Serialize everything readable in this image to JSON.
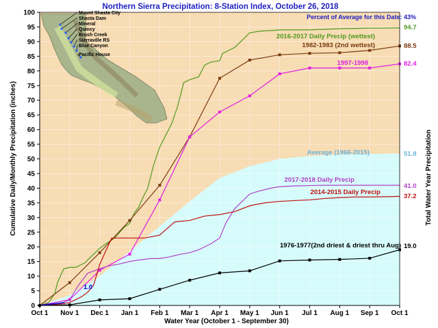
{
  "chart_data": {
    "type": "line",
    "title": "Northern Sierra Precipitation: 8-Station Index, October 26, 2018",
    "subtitle": "Percent of Average for this Date: 43%",
    "xlabel": "Water Year (October 1 - September 30)",
    "ylabel": "Cumulative Daily/Monthly Precipitation (inches)",
    "y2label": "Total Water Year Precipitation",
    "ylim": [
      0,
      100
    ],
    "yticks": [
      "0",
      "5",
      "10",
      "15",
      "20",
      "25",
      "30",
      "35",
      "40",
      "45",
      "50",
      "55",
      "60",
      "65",
      "70",
      "75",
      "80",
      "85",
      "90",
      "95",
      "100"
    ],
    "xtick_labels": [
      "Oct 1",
      "Nov 1",
      "Dec 1",
      "Jan 1",
      "Feb 1",
      "Mar 1",
      "Apr 1",
      "May 1",
      "Jun 1",
      "Jul 1",
      "Aug 1",
      "Sep 1",
      "Oct 1"
    ],
    "colors": {
      "background": "#f7dcb4",
      "average_fill": "#d6fbfb",
      "wy2017": "#4f9a1e",
      "wy1983": "#7a3b10",
      "wy1998": "#e020e0",
      "wy2018": "#b040c8",
      "wy2015": "#c01010",
      "wy1977": "#000000",
      "current": "#0000d0",
      "average": "#7ab8d8"
    },
    "series": [
      {
        "key": "average",
        "name": "Average (1966-2015)",
        "total": "51.8",
        "x": [
          0,
          1,
          2,
          3,
          4,
          5,
          6,
          7,
          8,
          9,
          10,
          11,
          12
        ],
        "values": [
          0,
          3.5,
          10,
          18.5,
          27,
          35.5,
          43.5,
          47.5,
          50,
          51,
          51.5,
          51.7,
          51.8
        ]
      },
      {
        "key": "wy2017",
        "name": "2016-2017 Daily Precip (wettest)",
        "total": "94.7",
        "x": [
          0,
          0.3,
          0.5,
          0.6,
          0.8,
          1,
          1.2,
          1.5,
          1.7,
          2,
          2.2,
          2.5,
          2.8,
          3,
          3.15,
          3.3,
          3.45,
          3.6,
          3.8,
          4,
          4.2,
          4.4,
          4.6,
          4.8,
          5,
          5.3,
          5.5,
          5.7,
          6,
          6.1,
          6.3,
          6.5,
          6.7,
          7,
          7.3,
          7.5,
          7.8,
          8,
          8.3,
          8.6,
          9,
          9.5,
          10,
          10.5,
          11,
          11.5,
          12
        ],
        "values": [
          0,
          1,
          4,
          8,
          12.5,
          13,
          13,
          14.5,
          16.5,
          19.5,
          21,
          23,
          26.5,
          28,
          31.5,
          33.5,
          37,
          40,
          48,
          54,
          58,
          62,
          68,
          76,
          77,
          78,
          82,
          83,
          83.5,
          86,
          87,
          88,
          90,
          93,
          93.5,
          93.7,
          93.8,
          94,
          94,
          94,
          94,
          94.2,
          94.4,
          94.5,
          94.6,
          94.6,
          94.7
        ]
      },
      {
        "key": "wy1983",
        "name": "1982-1983 (2nd wettest)",
        "total": "88.5",
        "x": [
          0,
          1,
          2,
          3,
          4,
          5,
          6,
          7,
          8,
          9,
          10,
          11,
          12
        ],
        "values": [
          0,
          7.8,
          18,
          29,
          41,
          57.5,
          77.5,
          83.7,
          85.5,
          86,
          86.2,
          87,
          88.5
        ]
      },
      {
        "key": "wy1998",
        "name": "1997-1998",
        "total": "82.4",
        "x": [
          0,
          1,
          2,
          3,
          4,
          5,
          6,
          7,
          8,
          9,
          10,
          11,
          12
        ],
        "values": [
          0,
          2,
          12,
          17.5,
          36,
          57.5,
          66,
          71.5,
          79,
          81,
          81,
          81,
          82.4
        ]
      },
      {
        "key": "wy2018",
        "name": "2017-2018 Daily Precip",
        "total": "41.0",
        "x": [
          0,
          0.5,
          0.8,
          1,
          1.3,
          1.6,
          2,
          2.3,
          2.6,
          3,
          3.3,
          3.7,
          4,
          4.3,
          4.7,
          5,
          5.3,
          5.7,
          6,
          6.2,
          6.5,
          6.8,
          7,
          7.3,
          7.7,
          8,
          8.5,
          9,
          9.5,
          10,
          11,
          12
        ],
        "values": [
          0,
          0.5,
          1,
          2,
          7,
          11,
          12.5,
          13.5,
          14,
          15,
          15.5,
          16,
          16,
          16.5,
          17.5,
          18,
          19,
          21,
          23,
          28,
          33,
          36,
          38,
          39,
          40,
          40.5,
          40.8,
          40.9,
          41,
          41,
          41,
          41
        ]
      },
      {
        "key": "wy2015",
        "name": "2014-2015 Daily Precip",
        "total": "37.2",
        "x": [
          0,
          0.5,
          0.8,
          1,
          1.2,
          1.4,
          1.6,
          1.8,
          2,
          2.2,
          2.4,
          2.6,
          2.8,
          3,
          3.5,
          4,
          4.5,
          5,
          5.5,
          6,
          6.5,
          7,
          7.5,
          8,
          8.5,
          9,
          9.5,
          10,
          10.5,
          11,
          11.5,
          12
        ],
        "values": [
          0,
          0.3,
          0.6,
          1,
          2,
          3,
          4.5,
          7,
          14,
          18.5,
          23,
          23,
          23,
          23,
          23,
          24,
          28.5,
          29,
          30.5,
          31,
          32,
          34,
          35,
          35.5,
          35.8,
          36,
          36.5,
          36.8,
          37,
          37,
          37.1,
          37.2
        ]
      },
      {
        "key": "wy1977",
        "name": "1976-1977(2nd driest & driest thru Aug)",
        "total": "19.0",
        "x": [
          0,
          1,
          2,
          3,
          4,
          5,
          6,
          7,
          8,
          9,
          10,
          11,
          12
        ],
        "values": [
          0,
          0.2,
          1.9,
          2.3,
          5.5,
          8.6,
          11.1,
          11.8,
          15.2,
          15.5,
          15.7,
          16.1,
          19.0
        ]
      },
      {
        "key": "current",
        "name": "",
        "total": "1.0",
        "x": [
          0,
          0.2,
          0.5,
          0.83
        ],
        "values": [
          0,
          0.3,
          0.6,
          1.0
        ]
      }
    ],
    "annotations": {
      "map_labels": [
        "Mount Shasta City",
        "Shasta Dam",
        "Mineral",
        "Quincy",
        "Brush Creek",
        "Sierraville RS",
        "Blue Canyon",
        "Pacific House"
      ]
    }
  }
}
